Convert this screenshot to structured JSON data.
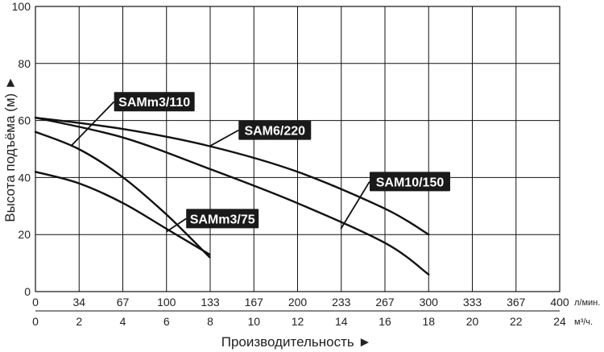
{
  "chart_data": {
    "type": "line",
    "title": "",
    "xlabel": "Производительность ►",
    "ylabel": "Высота подъёма (м) ►",
    "x_unit_primary": "л/мин.",
    "x_unit_secondary": "м³/ч.",
    "xlim": [
      0,
      400
    ],
    "ylim": [
      0,
      100
    ],
    "grid": true,
    "x_ticks_primary": [
      "0",
      "34",
      "67",
      "100",
      "133",
      "167",
      "200",
      "233",
      "267",
      "300",
      "333",
      "367",
      "400"
    ],
    "x_ticks_secondary": [
      "0",
      "2",
      "4",
      "6",
      "8",
      "10",
      "12",
      "14",
      "16",
      "18",
      "20",
      "22",
      "24"
    ],
    "y_ticks": [
      "0",
      "20",
      "40",
      "60",
      "80",
      "100"
    ],
    "series": [
      {
        "name": "SAMm3/110",
        "x": [
          0,
          33,
          67,
          100,
          133
        ],
        "y": [
          56,
          50,
          40,
          27,
          12
        ]
      },
      {
        "name": "SAMm3/75",
        "x": [
          0,
          33,
          67,
          100,
          133
        ],
        "y": [
          42,
          38,
          31,
          22,
          13
        ]
      },
      {
        "name": "SAM6/220",
        "x": [
          0,
          67,
          133,
          200,
          267,
          300
        ],
        "y": [
          61,
          57,
          51,
          42,
          29,
          20
        ]
      },
      {
        "name": "SAM10/150",
        "x": [
          0,
          67,
          133,
          200,
          267,
          300
        ],
        "y": [
          61,
          54,
          43,
          31,
          17,
          6
        ]
      }
    ],
    "annotations": [
      {
        "text": "SAMm3/110",
        "series": "SAMm3/110",
        "point": [
          27,
          51
        ],
        "box_at": [
          60,
          70
        ]
      },
      {
        "text": "SAM6/220",
        "series": "SAM6/220",
        "point": [
          133,
          51
        ],
        "box_at": [
          155,
          60
        ]
      },
      {
        "text": "SAM10/150",
        "series": "SAM10/150",
        "point": [
          233,
          22
        ],
        "box_at": [
          255,
          42
        ]
      },
      {
        "text": "SAMm3/75",
        "series": "SAMm3/75",
        "point": [
          100,
          21
        ],
        "box_at": [
          115,
          29
        ]
      }
    ]
  }
}
